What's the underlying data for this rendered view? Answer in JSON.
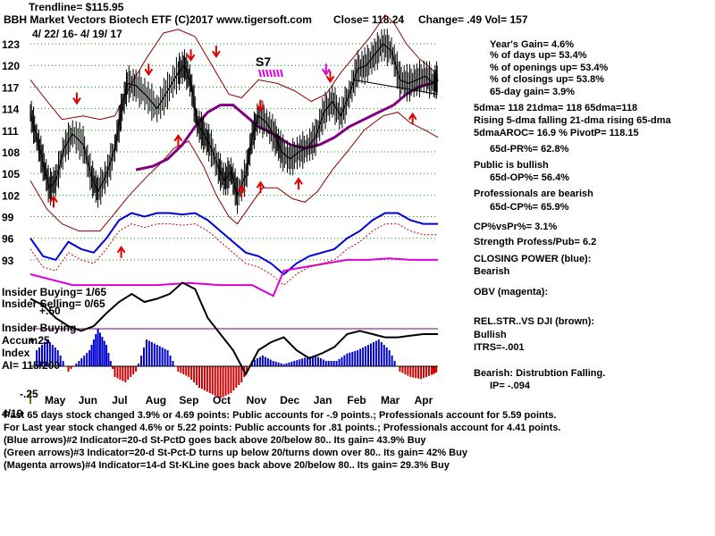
{
  "header": {
    "trendline": "Trendline= $115.95",
    "title": "BBH   Market Vectors Biotech ETF  (C)2017 www.tigersoft.com",
    "close": "Close=  118.24",
    "change": "Change= .49 Vol= 157",
    "daterange": "4/ 22/ 16-  4/ 19/ 17"
  },
  "s7_label": "S7",
  "stats": [
    "Year's Gain= 4.6%",
    "% of days up= 53.4%",
    "% of openings up= 53.4%",
    "% of closings up= 53.8%",
    "65-day gain= 3.9%",
    "5dma= 118 21dma= 118 65dma=118",
    "Rising 5-dma falling 21-dma rising 65-dma",
    "5dmaAROC= 16.9 %  PivotP= 118.15",
    "65d-PR%= 62.8%",
    "Public is bullish",
    "65d-OP%= 56.4%",
    "Professionals are bearish",
    "65d-CP%= 65.9%",
    "CP%vsPr%=  3.1%",
    "Strength Profess/Pub= 6.2",
    "CLOSING POWER (blue):",
    "Bearish",
    "OBV (magenta):",
    "REL.STR..VS DJI (brown):",
    "Bullish",
    "ITRS=-.001",
    "Bearish: Distrubtion Falling.",
    "IP= -.094"
  ],
  "indicator_labels": {
    "insider_buying": "Insider Buying= 1/65",
    "insider_selling": "Insider Selling= 0/65",
    "plus50": "+.50",
    "insider_buying2": "Insider Buying",
    "accum": "Accum",
    "plus25": "+.25",
    "index": "Index",
    "ai": "AI= 115/200",
    "minus25": "-.25",
    "last": "4/19"
  },
  "footer": [
    "Past 65 days stock changed  3.9% or  4.69 points:  Public accounts for -.9 points.;  Professionals account for  5.59 points.",
    "For Last year stock changed  4.6% or  5.22 points:  Public accounts for  .81 points.;  Professionals account for  4.41 points.",
    "(Blue arrows)#2 Indicator=20-d St-PctD goes back above 20/below 80..  Its gain= 43.9% Buy",
    "(Green arrows)#3 Indicator=20-d St-Pct-D turns up below 20/turns down over 80..  Its gain= 42% Buy",
    "(Magenta arrows)#4 Indicator=14-d St-KLine goes back above 20/below 80..  Its gain= 29.3% Buy"
  ],
  "colors": {
    "price": "#000000",
    "band": "#8b0000",
    "ma65": "#800080",
    "cp": "#0000dd",
    "obv": "#dd00dd",
    "ai_pos": "#0000cc",
    "ai_neg": "#cc0000",
    "arrow": "#dd0000",
    "grid": "#009900"
  },
  "chart_data": {
    "type": "line",
    "title": "BBH Market Vectors Biotech ETF",
    "date_range": "4/22/16 - 4/19/17",
    "ylim": [
      91,
      124
    ],
    "y_ticks": [
      93,
      96,
      99,
      102,
      105,
      108,
      111,
      114,
      117,
      120,
      123
    ],
    "x_months": [
      "May",
      "Jun",
      "Jul",
      "Aug",
      "Sep",
      "Oct",
      "Nov",
      "Dec",
      "Jan",
      "Feb",
      "Mar",
      "Apr"
    ],
    "series": [
      {
        "name": "Price (daily close)",
        "points": [
          [
            0,
            113.4
          ],
          [
            0.3,
            110.0
          ],
          [
            0.6,
            106.5
          ],
          [
            0.9,
            103.0
          ],
          [
            1.2,
            104.0
          ],
          [
            1.6,
            108.5
          ],
          [
            2.0,
            110.5
          ],
          [
            2.5,
            109.0
          ],
          [
            2.9,
            104.5
          ],
          [
            3.2,
            102.5
          ],
          [
            3.6,
            104.8
          ],
          [
            4.0,
            108.5
          ],
          [
            4.3,
            113.5
          ],
          [
            4.6,
            117.5
          ],
          [
            5.0,
            117.2
          ],
          [
            5.5,
            115.8
          ],
          [
            6.0,
            114.0
          ],
          [
            6.5,
            116.5
          ],
          [
            7.0,
            119.0
          ],
          [
            7.3,
            120.0
          ],
          [
            7.6,
            117.5
          ],
          [
            7.9,
            112.0
          ],
          [
            8.2,
            110.5
          ],
          [
            8.5,
            109.0
          ],
          [
            8.9,
            105.8
          ],
          [
            9.2,
            104.0
          ],
          [
            9.5,
            105.3
          ],
          [
            9.8,
            102.0
          ],
          [
            10.2,
            104.8
          ],
          [
            10.5,
            110.0
          ],
          [
            10.8,
            113.0
          ],
          [
            11.2,
            112.0
          ],
          [
            11.6,
            110.0
          ],
          [
            11.9,
            108.0
          ],
          [
            12.3,
            107.0
          ],
          [
            12.7,
            108.0
          ],
          [
            13.1,
            108.5
          ],
          [
            13.5,
            110.0
          ],
          [
            13.9,
            113.5
          ],
          [
            14.3,
            115.0
          ],
          [
            14.7,
            113.0
          ],
          [
            15.1,
            116.0
          ],
          [
            15.5,
            119.5
          ],
          [
            15.9,
            120.0
          ],
          [
            16.3,
            121.5
          ],
          [
            16.7,
            123.0
          ],
          [
            17.1,
            122.0
          ],
          [
            17.5,
            118.0
          ],
          [
            17.9,
            117.5
          ],
          [
            18.3,
            118.0
          ],
          [
            18.7,
            118.5
          ],
          [
            19.1,
            117.5
          ],
          [
            19.3,
            118.2
          ]
        ]
      },
      {
        "name": "Upper band",
        "points": [
          [
            0,
            118.0
          ],
          [
            0.8,
            115.0
          ],
          [
            1.5,
            112.5
          ],
          [
            2.5,
            113.0
          ],
          [
            3.3,
            112.5
          ],
          [
            4.0,
            113.0
          ],
          [
            4.7,
            117.0
          ],
          [
            5.5,
            121.0
          ],
          [
            6.3,
            124.5
          ],
          [
            7.0,
            125.0
          ],
          [
            7.8,
            124.0
          ],
          [
            8.6,
            120.0
          ],
          [
            9.4,
            116.0
          ],
          [
            10.0,
            115.5
          ],
          [
            10.8,
            118.0
          ],
          [
            11.7,
            117.5
          ],
          [
            12.5,
            116.5
          ],
          [
            13.3,
            115.0
          ],
          [
            14.0,
            116.0
          ],
          [
            14.7,
            119.0
          ],
          [
            15.4,
            121.5
          ],
          [
            16.1,
            124.0
          ],
          [
            16.8,
            127.0
          ],
          [
            17.2,
            126.0
          ],
          [
            17.8,
            123.0
          ],
          [
            18.4,
            121.0
          ],
          [
            19.0,
            119.5
          ],
          [
            19.3,
            118.5
          ]
        ]
      },
      {
        "name": "Lower band",
        "points": [
          [
            0,
            104.0
          ],
          [
            0.8,
            100.0
          ],
          [
            1.5,
            98.0
          ],
          [
            2.3,
            97.0
          ],
          [
            3.3,
            97.0
          ],
          [
            4.0,
            99.5
          ],
          [
            4.7,
            102.0
          ],
          [
            5.5,
            104.5
          ],
          [
            6.2,
            106.5
          ],
          [
            6.8,
            108.5
          ],
          [
            7.5,
            109.5
          ],
          [
            8.2,
            106.0
          ],
          [
            8.8,
            102.0
          ],
          [
            9.4,
            99.0
          ],
          [
            9.8,
            98.0
          ],
          [
            10.4,
            100.5
          ],
          [
            11.0,
            103.0
          ],
          [
            11.7,
            103.0
          ],
          [
            12.4,
            101.5
          ],
          [
            13.0,
            101.0
          ],
          [
            13.6,
            102.5
          ],
          [
            14.3,
            105.5
          ],
          [
            15.0,
            108.0
          ],
          [
            15.8,
            111.0
          ],
          [
            16.7,
            113.0
          ],
          [
            17.4,
            113.5
          ],
          [
            18.0,
            112.0
          ],
          [
            18.7,
            111.0
          ],
          [
            19.3,
            110.0
          ]
        ]
      },
      {
        "name": "65-day MA",
        "points": [
          [
            5.0,
            105.5
          ],
          [
            5.8,
            106.0
          ],
          [
            6.5,
            107.0
          ],
          [
            7.2,
            109.0
          ],
          [
            7.8,
            111.5
          ],
          [
            8.4,
            113.5
          ],
          [
            9.0,
            114.5
          ],
          [
            9.6,
            114.5
          ],
          [
            10.2,
            113.0
          ],
          [
            10.8,
            111.5
          ],
          [
            11.5,
            110.5
          ],
          [
            12.3,
            109.0
          ],
          [
            13.0,
            108.5
          ],
          [
            13.7,
            109.0
          ],
          [
            14.4,
            110.0
          ],
          [
            15.1,
            111.5
          ],
          [
            15.8,
            112.5
          ],
          [
            16.5,
            113.5
          ],
          [
            17.2,
            114.5
          ],
          [
            17.8,
            116.0
          ],
          [
            18.4,
            117.0
          ],
          [
            19.0,
            117.5
          ],
          [
            19.3,
            118.0
          ]
        ]
      },
      {
        "name": "Trendline",
        "points": [
          [
            15.3,
            118.0
          ],
          [
            19.3,
            116.0
          ]
        ]
      }
    ],
    "closing_power": [
      [
        0,
        96.0
      ],
      [
        0.6,
        93.5
      ],
      [
        1.2,
        93.0
      ],
      [
        1.8,
        95.5
      ],
      [
        2.4,
        94.5
      ],
      [
        3.0,
        94.0
      ],
      [
        3.6,
        96.0
      ],
      [
        4.2,
        98.5
      ],
      [
        4.8,
        99.5
      ],
      [
        5.4,
        99.0
      ],
      [
        6.0,
        99.5
      ],
      [
        6.6,
        99.5
      ],
      [
        7.2,
        99.3
      ],
      [
        7.8,
        99.5
      ],
      [
        8.4,
        98.5
      ],
      [
        9.0,
        97.0
      ],
      [
        9.6,
        95.5
      ],
      [
        10.2,
        94.0
      ],
      [
        10.8,
        93.5
      ],
      [
        11.4,
        92.5
      ],
      [
        12.0,
        91.0
      ],
      [
        12.6,
        92.5
      ],
      [
        13.2,
        93.5
      ],
      [
        13.8,
        94.0
      ],
      [
        14.4,
        94.5
      ],
      [
        15.0,
        96.0
      ],
      [
        15.6,
        97.0
      ],
      [
        16.2,
        98.5
      ],
      [
        16.8,
        99.5
      ],
      [
        17.4,
        99.5
      ],
      [
        18.0,
        98.5
      ],
      [
        18.6,
        98.0
      ],
      [
        19.3,
        98.0
      ]
    ],
    "obv": [
      [
        0,
        91.0
      ],
      [
        2.0,
        89.5
      ],
      [
        4.0,
        89.5
      ],
      [
        6.0,
        89.5
      ],
      [
        7.5,
        89.8
      ],
      [
        9.0,
        89.5
      ],
      [
        10.5,
        89.5
      ],
      [
        11.5,
        88.0
      ],
      [
        12.0,
        91.5
      ],
      [
        13.0,
        92.0
      ],
      [
        14.0,
        92.5
      ],
      [
        15.0,
        93.0
      ],
      [
        16.0,
        93.0
      ],
      [
        17.0,
        93.2
      ],
      [
        18.0,
        93.0
      ],
      [
        19.3,
        93.0
      ]
    ],
    "accum_index": [
      [
        0.3,
        0.15
      ],
      [
        0.8,
        0.25
      ],
      [
        1.3,
        0.15
      ],
      [
        1.8,
        -0.05
      ],
      [
        2.3,
        0.05
      ],
      [
        2.8,
        0.15
      ],
      [
        3.2,
        0.35
      ],
      [
        3.6,
        0.2
      ],
      [
        4.0,
        -0.1
      ],
      [
        4.5,
        -0.15
      ],
      [
        5.0,
        -0.05
      ],
      [
        5.5,
        0.25
      ],
      [
        6.0,
        0.2
      ],
      [
        6.5,
        0.15
      ],
      [
        7.0,
        -0.05
      ],
      [
        7.5,
        -0.1
      ],
      [
        8.0,
        -0.2
      ],
      [
        8.5,
        -0.25
      ],
      [
        9.0,
        -0.3
      ],
      [
        9.5,
        -0.25
      ],
      [
        10.0,
        -0.15
      ],
      [
        10.5,
        0.05
      ],
      [
        11.0,
        0.1
      ],
      [
        11.5,
        0.05
      ],
      [
        12.0,
        0.02
      ],
      [
        12.5,
        0.05
      ],
      [
        13.0,
        0.08
      ],
      [
        13.5,
        0.1
      ],
      [
        14.0,
        0.05
      ],
      [
        14.5,
        0.05
      ],
      [
        15.0,
        0.12
      ],
      [
        15.5,
        0.15
      ],
      [
        16.0,
        0.2
      ],
      [
        16.5,
        0.25
      ],
      [
        17.0,
        0.15
      ],
      [
        17.5,
        -0.05
      ],
      [
        18.0,
        -0.1
      ],
      [
        18.5,
        -0.12
      ],
      [
        19.0,
        -0.08
      ],
      [
        19.3,
        -0.05
      ]
    ],
    "relative_strength": [
      [
        0,
        0.42
      ],
      [
        0.6,
        0.38
      ],
      [
        1.2,
        0.3
      ],
      [
        1.8,
        0.25
      ],
      [
        2.4,
        0.22
      ],
      [
        3.0,
        0.25
      ],
      [
        3.6,
        0.33
      ],
      [
        4.2,
        0.4
      ],
      [
        4.8,
        0.45
      ],
      [
        5.4,
        0.4
      ],
      [
        6.0,
        0.42
      ],
      [
        6.6,
        0.45
      ],
      [
        7.2,
        0.52
      ],
      [
        7.8,
        0.48
      ],
      [
        8.4,
        0.3
      ],
      [
        9.0,
        0.2
      ],
      [
        9.6,
        0.1
      ],
      [
        10.2,
        -0.05
      ],
      [
        10.8,
        0.1
      ],
      [
        11.4,
        0.15
      ],
      [
        12.0,
        0.18
      ],
      [
        12.6,
        0.1
      ],
      [
        13.2,
        0.05
      ],
      [
        13.8,
        0.08
      ],
      [
        14.4,
        0.12
      ],
      [
        15.0,
        0.2
      ],
      [
        15.6,
        0.22
      ],
      [
        16.2,
        0.2
      ],
      [
        16.8,
        0.18
      ],
      [
        17.4,
        0.18
      ],
      [
        18.0,
        0.19
      ],
      [
        18.6,
        0.2
      ],
      [
        19.3,
        0.2
      ]
    ],
    "arrows_up": [
      [
        1.1,
        101.5
      ],
      [
        4.3,
        94.5
      ],
      [
        7.0,
        110.0
      ],
      [
        10.0,
        103.0
      ],
      [
        10.9,
        103.5
      ],
      [
        12.7,
        104.0
      ],
      [
        18.1,
        113.0
      ]
    ],
    "arrows_down": [
      [
        2.2,
        115.0
      ],
      [
        5.6,
        119.0
      ],
      [
        7.6,
        121.0
      ],
      [
        8.8,
        121.5
      ],
      [
        10.9,
        114.0
      ],
      [
        14.2,
        118.0
      ]
    ],
    "magenta_arrows_down": [
      [
        14.0,
        119.0
      ]
    ]
  }
}
